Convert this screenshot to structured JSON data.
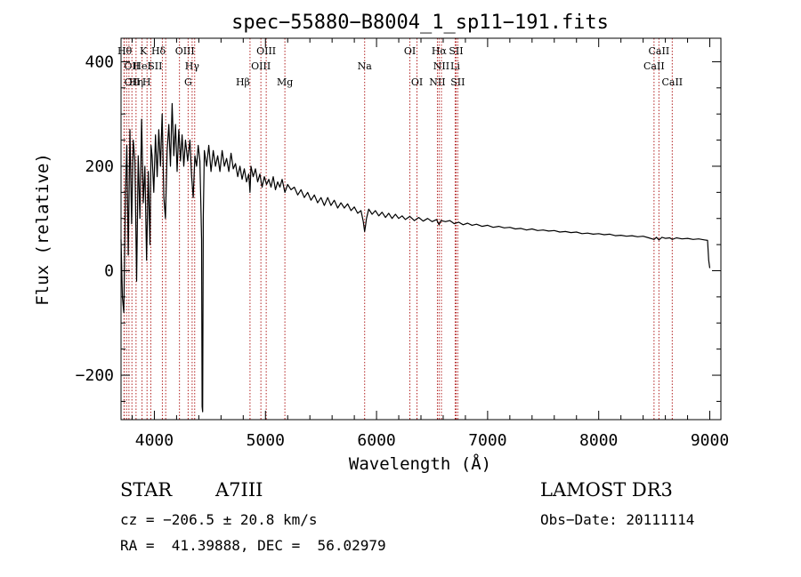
{
  "chart_data": {
    "type": "line",
    "title": "spec−55880−B8004_1_sp11−191.fits",
    "xlabel": "Wavelength (Å)",
    "ylabel": "Flux (relative)",
    "xlim": [
      3700,
      9100
    ],
    "ylim": [
      -285,
      445
    ],
    "x_ticks": [
      4000,
      5000,
      6000,
      7000,
      8000,
      9000
    ],
    "x_tick_labels": [
      "4000",
      "5000",
      "6000",
      "7000",
      "8000",
      "9000"
    ],
    "y_ticks": [
      -200,
      0,
      200,
      400
    ],
    "y_tick_labels": [
      "−200",
      "0",
      "200",
      "400"
    ],
    "x_minor_step": 200,
    "y_minor_step": 50,
    "line_color": "#000000",
    "marker_color": "#b22222",
    "series": [
      {
        "name": "flux",
        "points": [
          [
            3700,
            60
          ],
          [
            3712,
            -50
          ],
          [
            3725,
            -80
          ],
          [
            3740,
            150
          ],
          [
            3752,
            240
          ],
          [
            3765,
            30
          ],
          [
            3780,
            270
          ],
          [
            3795,
            90
          ],
          [
            3810,
            250
          ],
          [
            3825,
            210
          ],
          [
            3840,
            -20
          ],
          [
            3855,
            220
          ],
          [
            3870,
            100
          ],
          [
            3885,
            290
          ],
          [
            3900,
            130
          ],
          [
            3915,
            200
          ],
          [
            3930,
            20
          ],
          [
            3945,
            190
          ],
          [
            3960,
            50
          ],
          [
            3970,
            240
          ],
          [
            3980,
            220
          ],
          [
            3995,
            150
          ],
          [
            4010,
            260
          ],
          [
            4025,
            180
          ],
          [
            4040,
            270
          ],
          [
            4055,
            200
          ],
          [
            4070,
            300
          ],
          [
            4085,
            140
          ],
          [
            4100,
            100
          ],
          [
            4115,
            230
          ],
          [
            4130,
            280
          ],
          [
            4145,
            200
          ],
          [
            4160,
            320
          ],
          [
            4175,
            220
          ],
          [
            4190,
            280
          ],
          [
            4205,
            190
          ],
          [
            4220,
            270
          ],
          [
            4235,
            210
          ],
          [
            4250,
            260
          ],
          [
            4265,
            200
          ],
          [
            4280,
            250
          ],
          [
            4300,
            210
          ],
          [
            4320,
            250
          ],
          [
            4335,
            180
          ],
          [
            4350,
            140
          ],
          [
            4365,
            220
          ],
          [
            4380,
            200
          ],
          [
            4395,
            240
          ],
          [
            4410,
            210
          ],
          [
            4420,
            110
          ],
          [
            4425,
            60
          ],
          [
            4430,
            -260
          ],
          [
            4435,
            -270
          ],
          [
            4440,
            100
          ],
          [
            4450,
            230
          ],
          [
            4470,
            200
          ],
          [
            4490,
            240
          ],
          [
            4510,
            190
          ],
          [
            4530,
            230
          ],
          [
            4550,
            200
          ],
          [
            4570,
            220
          ],
          [
            4590,
            190
          ],
          [
            4610,
            230
          ],
          [
            4630,
            200
          ],
          [
            4650,
            215
          ],
          [
            4670,
            190
          ],
          [
            4690,
            225
          ],
          [
            4710,
            195
          ],
          [
            4730,
            205
          ],
          [
            4750,
            180
          ],
          [
            4770,
            200
          ],
          [
            4790,
            175
          ],
          [
            4810,
            195
          ],
          [
            4830,
            170
          ],
          [
            4850,
            185
          ],
          [
            4861,
            150
          ],
          [
            4870,
            200
          ],
          [
            4890,
            180
          ],
          [
            4910,
            195
          ],
          [
            4930,
            170
          ],
          [
            4950,
            185
          ],
          [
            4970,
            160
          ],
          [
            4990,
            180
          ],
          [
            5010,
            165
          ],
          [
            5030,
            175
          ],
          [
            5050,
            160
          ],
          [
            5070,
            180
          ],
          [
            5090,
            155
          ],
          [
            5110,
            170
          ],
          [
            5130,
            160
          ],
          [
            5150,
            175
          ],
          [
            5175,
            150
          ],
          [
            5200,
            165
          ],
          [
            5230,
            155
          ],
          [
            5260,
            160
          ],
          [
            5290,
            145
          ],
          [
            5320,
            155
          ],
          [
            5350,
            140
          ],
          [
            5380,
            150
          ],
          [
            5410,
            135
          ],
          [
            5440,
            145
          ],
          [
            5470,
            130
          ],
          [
            5500,
            140
          ],
          [
            5530,
            125
          ],
          [
            5560,
            140
          ],
          [
            5590,
            125
          ],
          [
            5620,
            135
          ],
          [
            5650,
            120
          ],
          [
            5680,
            130
          ],
          [
            5710,
            120
          ],
          [
            5740,
            128
          ],
          [
            5770,
            115
          ],
          [
            5800,
            122
          ],
          [
            5830,
            110
          ],
          [
            5860,
            115
          ],
          [
            5880,
            95
          ],
          [
            5893,
            75
          ],
          [
            5900,
            85
          ],
          [
            5910,
            100
          ],
          [
            5930,
            118
          ],
          [
            5960,
            108
          ],
          [
            5990,
            115
          ],
          [
            6020,
            105
          ],
          [
            6050,
            112
          ],
          [
            6080,
            102
          ],
          [
            6110,
            110
          ],
          [
            6140,
            100
          ],
          [
            6170,
            108
          ],
          [
            6200,
            100
          ],
          [
            6230,
            105
          ],
          [
            6260,
            98
          ],
          [
            6300,
            104
          ],
          [
            6340,
            96
          ],
          [
            6380,
            102
          ],
          [
            6420,
            95
          ],
          [
            6460,
            100
          ],
          [
            6500,
            94
          ],
          [
            6540,
            98
          ],
          [
            6563,
            88
          ],
          [
            6580,
            96
          ],
          [
            6620,
            94
          ],
          [
            6660,
            96
          ],
          [
            6700,
            90
          ],
          [
            6740,
            93
          ],
          [
            6780,
            88
          ],
          [
            6820,
            91
          ],
          [
            6860,
            87
          ],
          [
            6900,
            89
          ],
          [
            6950,
            85
          ],
          [
            7000,
            87
          ],
          [
            7050,
            83
          ],
          [
            7100,
            85
          ],
          [
            7150,
            82
          ],
          [
            7200,
            83
          ],
          [
            7250,
            80
          ],
          [
            7300,
            81
          ],
          [
            7350,
            78
          ],
          [
            7400,
            80
          ],
          [
            7450,
            77
          ],
          [
            7500,
            78
          ],
          [
            7550,
            76
          ],
          [
            7600,
            77
          ],
          [
            7650,
            74
          ],
          [
            7700,
            75
          ],
          [
            7750,
            73
          ],
          [
            7800,
            74
          ],
          [
            7850,
            71
          ],
          [
            7900,
            72
          ],
          [
            7950,
            70
          ],
          [
            8000,
            71
          ],
          [
            8050,
            69
          ],
          [
            8100,
            70
          ],
          [
            8150,
            67
          ],
          [
            8200,
            68
          ],
          [
            8250,
            66
          ],
          [
            8300,
            67
          ],
          [
            8350,
            65
          ],
          [
            8400,
            66
          ],
          [
            8450,
            63
          ],
          [
            8498,
            60
          ],
          [
            8520,
            64
          ],
          [
            8542,
            59
          ],
          [
            8570,
            64
          ],
          [
            8600,
            62
          ],
          [
            8640,
            63
          ],
          [
            8662,
            60
          ],
          [
            8700,
            63
          ],
          [
            8750,
            61
          ],
          [
            8800,
            62
          ],
          [
            8850,
            60
          ],
          [
            8900,
            61
          ],
          [
            8950,
            59
          ],
          [
            8980,
            58
          ],
          [
            8990,
            20
          ],
          [
            9000,
            5
          ]
        ]
      }
    ],
    "line_markers": [
      {
        "label": "Hθ",
        "x": 3798,
        "row": 0,
        "anchor": "end"
      },
      {
        "label": "K",
        "x": 3934,
        "row": 0,
        "anchor": "end"
      },
      {
        "label": "Hδ",
        "x": 4102,
        "row": 0,
        "anchor": "end"
      },
      {
        "label": "OIII",
        "x": 4363,
        "row": 0,
        "anchor": "end"
      },
      {
        "label": "OIII",
        "x": 5007,
        "row": 0,
        "anchor": "middle"
      },
      {
        "label": "OI",
        "x": 6300,
        "row": 0,
        "anchor": "middle"
      },
      {
        "label": "Hα",
        "x": 6563,
        "row": 0,
        "anchor": "middle"
      },
      {
        "label": "SII",
        "x": 6716,
        "row": 0,
        "anchor": "middle"
      },
      {
        "label": "CaII",
        "x": 8542,
        "row": 0,
        "anchor": "middle"
      },
      {
        "label": "OII",
        "x": 3727,
        "row": 1,
        "anchor": "start"
      },
      {
        "label": "HeI",
        "x": 3889,
        "row": 1,
        "anchor": "middle"
      },
      {
        "label": "SII",
        "x": 4072,
        "row": 1,
        "anchor": "end"
      },
      {
        "label": "Hγ",
        "x": 4340,
        "row": 1,
        "anchor": "middle"
      },
      {
        "label": "OIII",
        "x": 4959,
        "row": 1,
        "anchor": "middle"
      },
      {
        "label": "Na",
        "x": 5893,
        "row": 1,
        "anchor": "middle"
      },
      {
        "label": "NII",
        "x": 6584,
        "row": 1,
        "anchor": "middle"
      },
      {
        "label": "Li",
        "x": 6708,
        "row": 1,
        "anchor": "middle"
      },
      {
        "label": "CaII",
        "x": 8498,
        "row": 1,
        "anchor": "middle"
      },
      {
        "label": "OII",
        "x": 3729,
        "row": 2,
        "anchor": "start"
      },
      {
        "label": "Hη",
        "x": 3835,
        "row": 2,
        "anchor": "middle"
      },
      {
        "label": "H",
        "x": 3968,
        "row": 2,
        "anchor": "end"
      },
      {
        "label": "G",
        "x": 4304,
        "row": 2,
        "anchor": "middle"
      },
      {
        "label": "Hβ",
        "x": 4861,
        "row": 2,
        "anchor": "end"
      },
      {
        "label": "Mg",
        "x": 5175,
        "row": 2,
        "anchor": "middle"
      },
      {
        "label": "OI",
        "x": 6364,
        "row": 2,
        "anchor": "middle"
      },
      {
        "label": "NII",
        "x": 6548,
        "row": 2,
        "anchor": "middle"
      },
      {
        "label": "SII",
        "x": 6731,
        "row": 2,
        "anchor": "middle"
      },
      {
        "label": "CaII",
        "x": 8662,
        "row": 2,
        "anchor": "middle"
      },
      {
        "label": "",
        "x": 3750,
        "row": -1,
        "anchor": "middle"
      },
      {
        "label": "",
        "x": 3771,
        "row": -1,
        "anchor": "middle"
      },
      {
        "label": "",
        "x": 4226,
        "row": -1,
        "anchor": "middle"
      }
    ]
  },
  "info": {
    "object_class": "STAR",
    "subclass": "A7III",
    "survey": "LAMOST DR3",
    "cz": "cz = −206.5 ± 20.8 km/s",
    "obs_date": "Obs−Date: 20111114",
    "coords": "RA =  41.39888, DEC =  56.02979"
  }
}
